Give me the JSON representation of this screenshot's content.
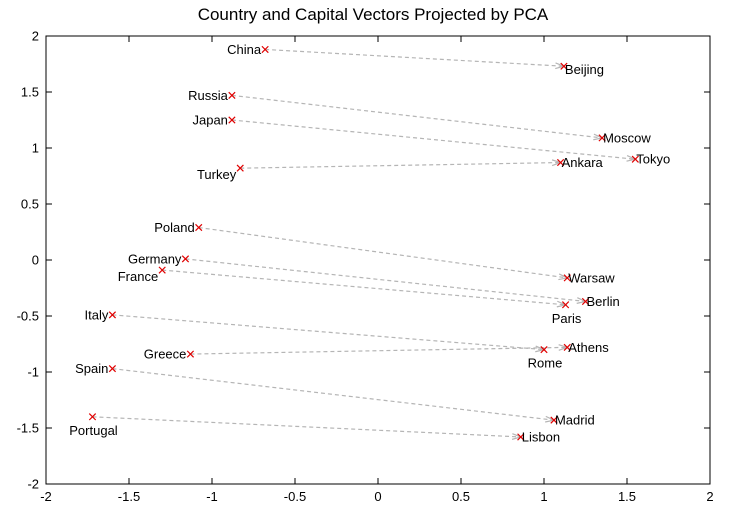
{
  "chart_data": {
    "type": "scatter",
    "title": "Country and Capital Vectors Projected by PCA",
    "xlabel": "",
    "ylabel": "",
    "xlim": [
      -2,
      2
    ],
    "ylim": [
      -2,
      2
    ],
    "xticks": [
      -2,
      -1.5,
      -1,
      -0.5,
      0,
      0.5,
      1,
      1.5,
      2
    ],
    "yticks": [
      2,
      1.5,
      1,
      0.5,
      0,
      -0.5,
      -1,
      -1.5,
      -2
    ],
    "xtick_labels": [
      "-2",
      "-1.5",
      "-1",
      "-0.5",
      "0",
      "0.5",
      "1",
      "1.5",
      "2"
    ],
    "ytick_labels": [
      "2",
      "1.5",
      "1",
      "0.5",
      "0",
      "-0.5",
      "-1",
      "-1.5",
      "-2"
    ],
    "marker_color": "#e00000",
    "arrow_color": "#b5b5b5",
    "pairs": [
      {
        "country": "China",
        "cx": -0.68,
        "cy": 1.88,
        "cpos": "left",
        "capital": "Beijing",
        "kx": 1.12,
        "ky": 1.73,
        "kpos": "right-below"
      },
      {
        "country": "Russia",
        "cx": -0.88,
        "cy": 1.47,
        "cpos": "left",
        "capital": "Moscow",
        "kx": 1.35,
        "ky": 1.09,
        "kpos": "right"
      },
      {
        "country": "Japan",
        "cx": -0.88,
        "cy": 1.25,
        "cpos": "left",
        "capital": "Tokyo",
        "kx": 1.55,
        "ky": 0.9,
        "kpos": "right"
      },
      {
        "country": "Turkey",
        "cx": -0.83,
        "cy": 0.82,
        "cpos": "left-below",
        "capital": "Ankara",
        "kx": 1.1,
        "ky": 0.87,
        "kpos": "right"
      },
      {
        "country": "Poland",
        "cx": -1.08,
        "cy": 0.29,
        "cpos": "left",
        "capital": "Warsaw",
        "kx": 1.14,
        "ky": -0.16,
        "kpos": "right"
      },
      {
        "country": "Germany",
        "cx": -1.16,
        "cy": 0.01,
        "cpos": "left",
        "capital": "Berlin",
        "kx": 1.25,
        "ky": -0.37,
        "kpos": "right"
      },
      {
        "country": "France",
        "cx": -1.3,
        "cy": -0.09,
        "cpos": "left-below",
        "capital": "Paris",
        "kx": 1.13,
        "ky": -0.4,
        "kpos": "below"
      },
      {
        "country": "Italy",
        "cx": -1.6,
        "cy": -0.49,
        "cpos": "left",
        "capital": "Rome",
        "kx": 1.0,
        "ky": -0.8,
        "kpos": "below"
      },
      {
        "country": "Greece",
        "cx": -1.13,
        "cy": -0.84,
        "cpos": "left",
        "capital": "Athens",
        "kx": 1.14,
        "ky": -0.78,
        "kpos": "right"
      },
      {
        "country": "Spain",
        "cx": -1.6,
        "cy": -0.97,
        "cpos": "left",
        "capital": "Madrid",
        "kx": 1.06,
        "ky": -1.43,
        "kpos": "right"
      },
      {
        "country": "Portugal",
        "cx": -1.72,
        "cy": -1.4,
        "cpos": "below",
        "capital": "Lisbon",
        "kx": 0.86,
        "ky": -1.58,
        "kpos": "right"
      }
    ]
  }
}
